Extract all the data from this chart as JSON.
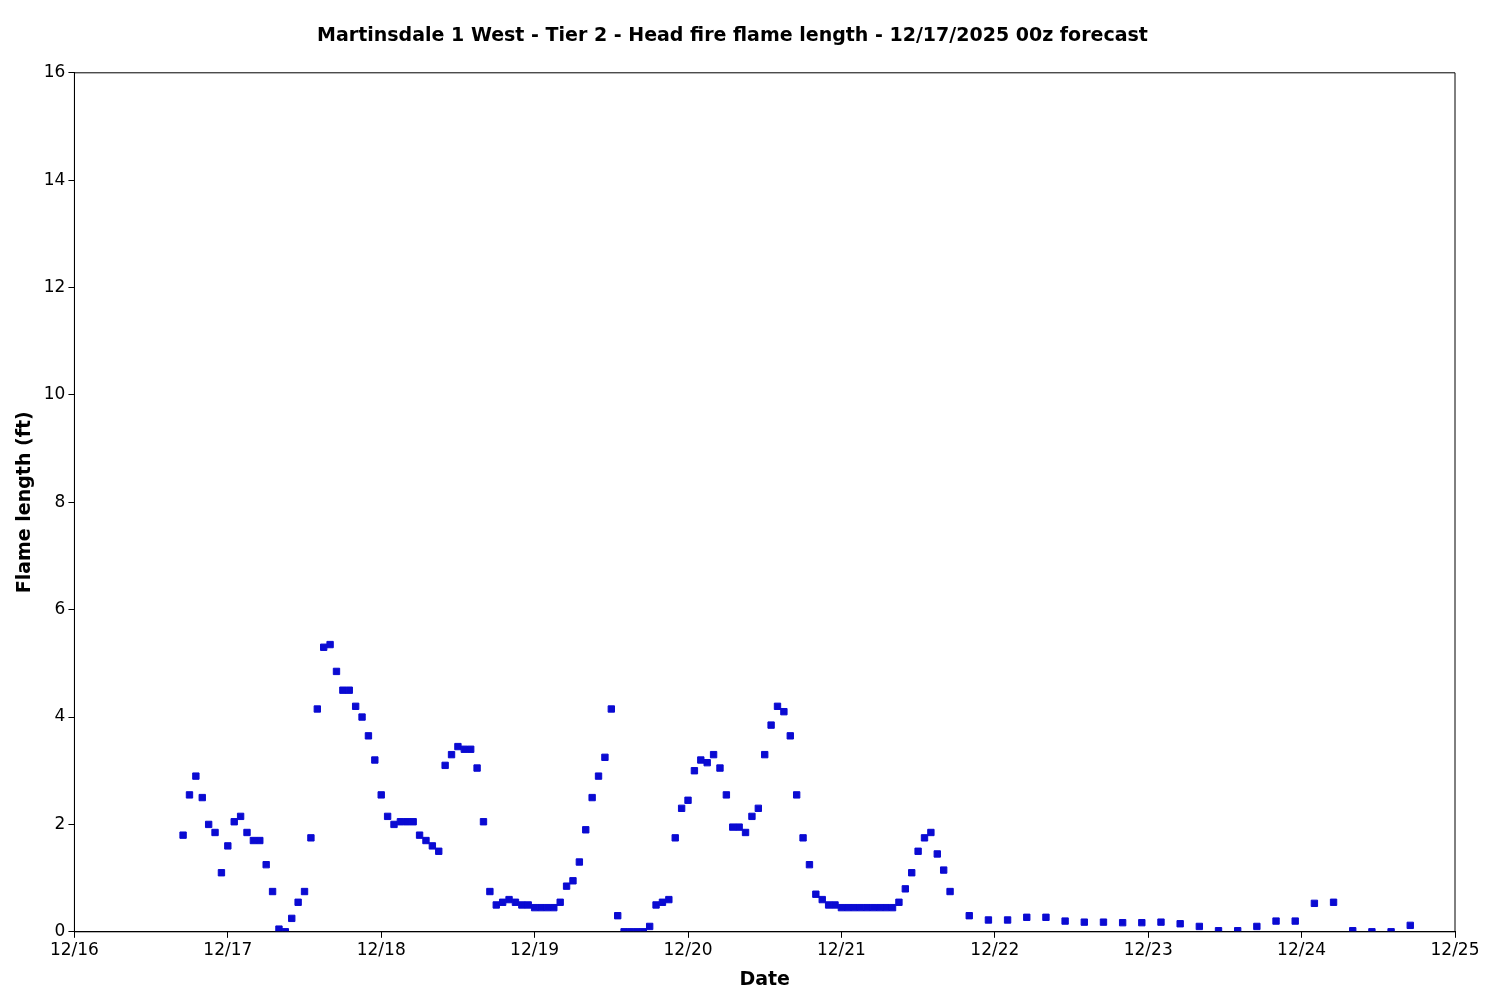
{
  "chart_data": {
    "type": "scatter",
    "title": "Martinsdale 1 West - Tier 2 - Head fire flame length - 12/17/2025 00z forecast",
    "xlabel": "Date",
    "ylabel": "Flame length (ft)",
    "xlim": [
      "2025-12-16T00:00",
      "2025-12-25T00:00"
    ],
    "xticks": [
      {
        "value": "2025-12-16T00:00",
        "label": "12/16"
      },
      {
        "value": "2025-12-17T00:00",
        "label": "12/17"
      },
      {
        "value": "2025-12-18T00:00",
        "label": "12/18"
      },
      {
        "value": "2025-12-19T00:00",
        "label": "12/19"
      },
      {
        "value": "2025-12-20T00:00",
        "label": "12/20"
      },
      {
        "value": "2025-12-21T00:00",
        "label": "12/21"
      },
      {
        "value": "2025-12-22T00:00",
        "label": "12/22"
      },
      {
        "value": "2025-12-23T00:00",
        "label": "12/23"
      },
      {
        "value": "2025-12-24T00:00",
        "label": "12/24"
      },
      {
        "value": "2025-12-25T00:00",
        "label": "12/25"
      }
    ],
    "ylim": [
      0,
      16
    ],
    "yticks": [
      0,
      2,
      4,
      6,
      8,
      10,
      12,
      14,
      16
    ],
    "grid": false,
    "legend": false,
    "marker": "square",
    "series": [
      {
        "color": "#0a0ad2",
        "x": [
          "2025-12-16T17:00",
          "2025-12-16T18:00",
          "2025-12-16T19:00",
          "2025-12-16T20:00",
          "2025-12-16T21:00",
          "2025-12-16T22:00",
          "2025-12-16T23:00",
          "2025-12-17T00:00",
          "2025-12-17T01:00",
          "2025-12-17T02:00",
          "2025-12-17T03:00",
          "2025-12-17T04:00",
          "2025-12-17T05:00",
          "2025-12-17T06:00",
          "2025-12-17T07:00",
          "2025-12-17T08:00",
          "2025-12-17T09:00",
          "2025-12-17T10:00",
          "2025-12-17T11:00",
          "2025-12-17T12:00",
          "2025-12-17T13:00",
          "2025-12-17T14:00",
          "2025-12-17T15:00",
          "2025-12-17T16:00",
          "2025-12-17T17:00",
          "2025-12-17T18:00",
          "2025-12-17T19:00",
          "2025-12-17T20:00",
          "2025-12-17T21:00",
          "2025-12-17T22:00",
          "2025-12-17T23:00",
          "2025-12-18T00:00",
          "2025-12-18T01:00",
          "2025-12-18T02:00",
          "2025-12-18T03:00",
          "2025-12-18T04:00",
          "2025-12-18T05:00",
          "2025-12-18T06:00",
          "2025-12-18T07:00",
          "2025-12-18T08:00",
          "2025-12-18T09:00",
          "2025-12-18T10:00",
          "2025-12-18T11:00",
          "2025-12-18T12:00",
          "2025-12-18T13:00",
          "2025-12-18T14:00",
          "2025-12-18T15:00",
          "2025-12-18T16:00",
          "2025-12-18T17:00",
          "2025-12-18T18:00",
          "2025-12-18T19:00",
          "2025-12-18T20:00",
          "2025-12-18T21:00",
          "2025-12-18T22:00",
          "2025-12-18T23:00",
          "2025-12-19T00:00",
          "2025-12-19T01:00",
          "2025-12-19T02:00",
          "2025-12-19T03:00",
          "2025-12-19T04:00",
          "2025-12-19T05:00",
          "2025-12-19T06:00",
          "2025-12-19T07:00",
          "2025-12-19T08:00",
          "2025-12-19T09:00",
          "2025-12-19T10:00",
          "2025-12-19T11:00",
          "2025-12-19T12:00",
          "2025-12-19T13:00",
          "2025-12-19T14:00",
          "2025-12-19T15:00",
          "2025-12-19T16:00",
          "2025-12-19T17:00",
          "2025-12-19T18:00",
          "2025-12-19T19:00",
          "2025-12-19T20:00",
          "2025-12-19T21:00",
          "2025-12-19T22:00",
          "2025-12-19T23:00",
          "2025-12-20T00:00",
          "2025-12-20T01:00",
          "2025-12-20T02:00",
          "2025-12-20T03:00",
          "2025-12-20T04:00",
          "2025-12-20T05:00",
          "2025-12-20T06:00",
          "2025-12-20T07:00",
          "2025-12-20T08:00",
          "2025-12-20T09:00",
          "2025-12-20T10:00",
          "2025-12-20T11:00",
          "2025-12-20T12:00",
          "2025-12-20T13:00",
          "2025-12-20T14:00",
          "2025-12-20T15:00",
          "2025-12-20T16:00",
          "2025-12-20T17:00",
          "2025-12-20T18:00",
          "2025-12-20T19:00",
          "2025-12-20T20:00",
          "2025-12-20T21:00",
          "2025-12-20T22:00",
          "2025-12-20T23:00",
          "2025-12-21T00:00",
          "2025-12-21T01:00",
          "2025-12-21T02:00",
          "2025-12-21T03:00",
          "2025-12-21T04:00",
          "2025-12-21T05:00",
          "2025-12-21T06:00",
          "2025-12-21T07:00",
          "2025-12-21T08:00",
          "2025-12-21T09:00",
          "2025-12-21T10:00",
          "2025-12-21T11:00",
          "2025-12-21T12:00",
          "2025-12-21T13:00",
          "2025-12-21T14:00",
          "2025-12-21T15:00",
          "2025-12-21T16:00",
          "2025-12-21T17:00",
          "2025-12-21T20:00",
          "2025-12-21T23:00",
          "2025-12-22T02:00",
          "2025-12-22T05:00",
          "2025-12-22T08:00",
          "2025-12-22T11:00",
          "2025-12-22T14:00",
          "2025-12-22T17:00",
          "2025-12-22T20:00",
          "2025-12-22T23:00",
          "2025-12-23T02:00",
          "2025-12-23T05:00",
          "2025-12-23T08:00",
          "2025-12-23T11:00",
          "2025-12-23T14:00",
          "2025-12-23T17:00",
          "2025-12-23T20:00",
          "2025-12-23T23:00",
          "2025-12-24T02:00",
          "2025-12-24T05:00",
          "2025-12-24T08:00",
          "2025-12-24T11:00",
          "2025-12-24T14:00",
          "2025-12-24T17:00"
        ],
        "values": [
          1.8,
          2.55,
          2.9,
          2.5,
          2.0,
          1.85,
          1.1,
          1.6,
          2.05,
          2.15,
          1.85,
          1.7,
          1.7,
          1.25,
          0.75,
          0.05,
          0.0,
          0.25,
          0.55,
          0.75,
          1.75,
          4.15,
          5.3,
          5.35,
          4.85,
          4.5,
          4.5,
          4.2,
          4.0,
          3.65,
          3.2,
          2.55,
          2.15,
          2.0,
          2.05,
          2.05,
          2.05,
          1.8,
          1.7,
          1.6,
          1.5,
          3.1,
          3.3,
          3.45,
          3.4,
          3.4,
          3.05,
          2.05,
          0.75,
          0.5,
          0.55,
          0.6,
          0.55,
          0.5,
          0.5,
          0.45,
          0.45,
          0.45,
          0.45,
          0.55,
          0.85,
          0.95,
          1.3,
          1.9,
          2.5,
          2.9,
          3.25,
          4.15,
          0.3,
          0.0,
          0.0,
          0.0,
          0.0,
          0.1,
          0.5,
          0.55,
          0.6,
          1.75,
          2.3,
          2.45,
          3.0,
          3.2,
          3.15,
          3.3,
          3.05,
          2.55,
          1.95,
          1.95,
          1.85,
          2.15,
          2.3,
          3.3,
          3.85,
          4.2,
          4.1,
          3.65,
          2.55,
          1.75,
          1.25,
          0.7,
          0.6,
          0.5,
          0.5,
          0.45,
          0.45,
          0.45,
          0.45,
          0.45,
          0.45,
          0.45,
          0.45,
          0.45,
          0.55,
          0.8,
          1.1,
          1.5,
          1.75,
          1.85,
          1.45,
          1.15,
          0.75,
          0.3,
          0.22,
          0.22,
          0.27,
          0.27,
          0.2,
          0.18,
          0.18,
          0.17,
          0.17,
          0.18,
          0.15,
          0.1,
          0.02,
          0.02,
          0.1,
          0.2,
          0.2,
          0.53,
          0.55,
          0.02,
          0.0,
          0.0,
          0.12
        ]
      }
    ]
  }
}
